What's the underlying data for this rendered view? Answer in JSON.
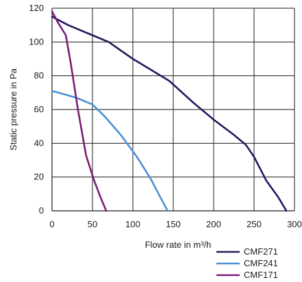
{
  "chart_data": {
    "type": "line",
    "title": "",
    "xlabel": "Flow rate in m³/h",
    "ylabel": "Static pressure in Pa",
    "xlim": [
      0,
      300
    ],
    "ylim": [
      0,
      120
    ],
    "x_ticks": [
      "0",
      "50",
      "100",
      "150",
      "200",
      "250",
      "300"
    ],
    "y_ticks": [
      "0",
      "20",
      "40",
      "60",
      "80",
      "100",
      "120"
    ],
    "grid": true,
    "legend_position": "bottom-right",
    "series": [
      {
        "name": "CMF271",
        "color": "#1f1a5e",
        "points": [
          [
            0,
            115
          ],
          [
            20,
            110
          ],
          [
            45,
            105
          ],
          [
            70,
            100
          ],
          [
            100,
            90
          ],
          [
            145,
            77
          ],
          [
            175,
            64
          ],
          [
            200,
            54
          ],
          [
            225,
            45
          ],
          [
            240,
            39
          ],
          [
            250,
            32
          ],
          [
            265,
            18
          ],
          [
            280,
            8
          ],
          [
            290,
            0
          ]
        ]
      },
      {
        "name": "CMF241",
        "color": "#4a8fd4",
        "points": [
          [
            0,
            71
          ],
          [
            15,
            69
          ],
          [
            30,
            67
          ],
          [
            50,
            63
          ],
          [
            65,
            56
          ],
          [
            85,
            45
          ],
          [
            105,
            32
          ],
          [
            122,
            19
          ],
          [
            133,
            9
          ],
          [
            143,
            0
          ]
        ]
      },
      {
        "name": "CMF171",
        "color": "#7b1a78",
        "points": [
          [
            0,
            118
          ],
          [
            8,
            111
          ],
          [
            17,
            104
          ],
          [
            23,
            88
          ],
          [
            32,
            60
          ],
          [
            42,
            33
          ],
          [
            52,
            18
          ],
          [
            60,
            8
          ],
          [
            67,
            0
          ]
        ]
      }
    ]
  }
}
